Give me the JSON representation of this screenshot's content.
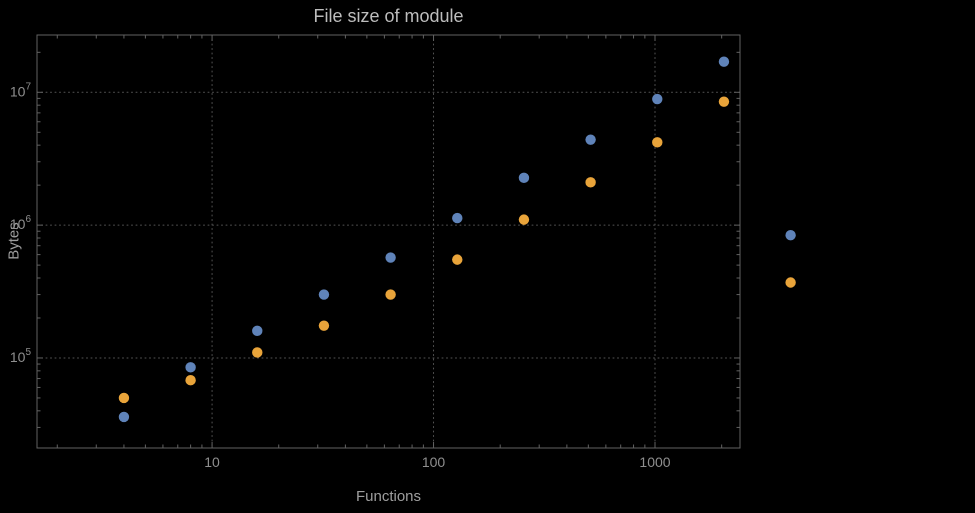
{
  "page": {
    "background": "#000000"
  },
  "chart_data": {
    "type": "scatter",
    "title": "File size of module",
    "xlabel": "Functions",
    "ylabel": "Bytes",
    "x_scale": "log",
    "y_scale": "log",
    "xlim": [
      1.62,
      2420
    ],
    "ylim": [
      21000,
      27000000
    ],
    "grid": "dotted lines at decade ticks only",
    "legend_position": "none",
    "x_ticks": [
      10,
      100,
      1000
    ],
    "x_tick_labels": [
      "10",
      "100",
      "1000"
    ],
    "y_ticks": [
      100000,
      1000000,
      10000000
    ],
    "y_tick_base": "10",
    "y_tick_exponents": [
      "5",
      "6",
      "7"
    ],
    "x": [
      4,
      8,
      16,
      32,
      64,
      128,
      256,
      512,
      1024,
      2048,
      4096
    ],
    "series": [
      {
        "name": "blue-series",
        "color": "#5f83b9",
        "values": [
          36000,
          85000,
          160000,
          300000,
          570000,
          1130000,
          2270000,
          4400000,
          8900000,
          17000000,
          840000
        ]
      },
      {
        "name": "orange-series",
        "color": "#e9a43a",
        "values": [
          50000,
          68000,
          110000,
          175000,
          300000,
          550000,
          1100000,
          2100000,
          4200000,
          8500000,
          370000
        ]
      }
    ],
    "marker": {
      "shape": "circle",
      "radius_px": 5.2
    },
    "colors": {
      "background": "#000000",
      "frame": "#626262",
      "grid": "#545454",
      "tick_text": "#8f8f8f",
      "label_text": "#9e9e9e",
      "title_text": "#bdbdbd"
    }
  }
}
